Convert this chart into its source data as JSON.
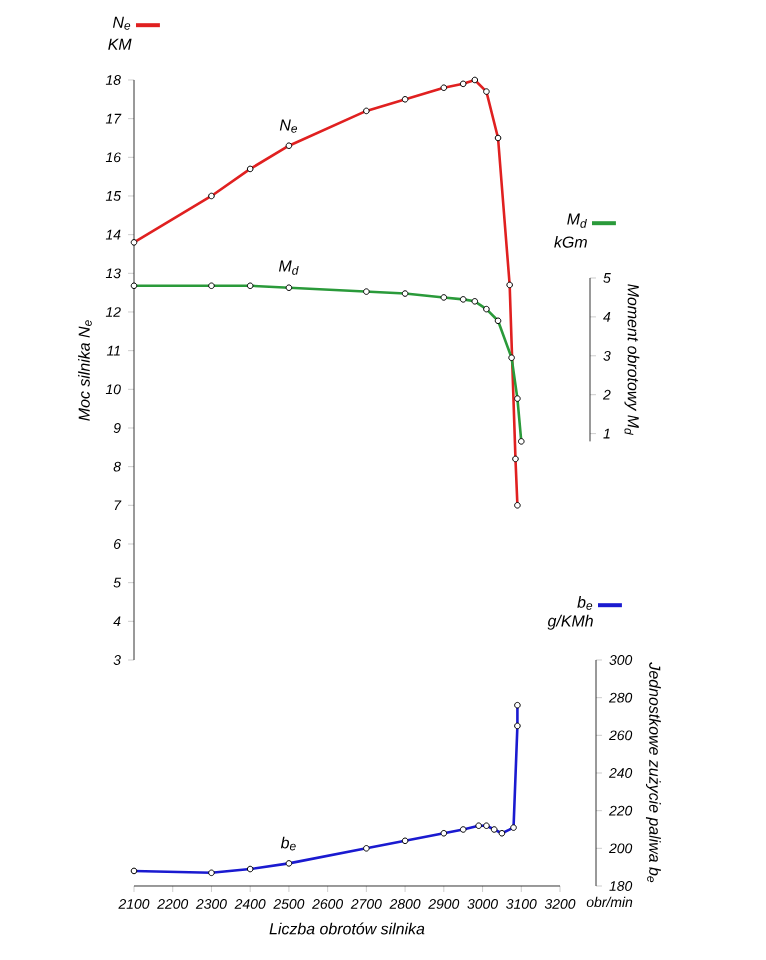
{
  "chart_data": [
    {
      "type": "line",
      "ylabel": "Moc silnika N$_{e}$",
      "xlim": [
        2100,
        3200
      ],
      "ylim": [
        3,
        18
      ],
      "yticks": [
        3,
        4,
        5,
        6,
        7,
        8,
        9,
        10,
        11,
        12,
        13,
        14,
        15,
        16,
        17,
        18
      ],
      "tick_labels": "y",
      "marker": "circle",
      "line_style": "solid",
      "annotations": [
        "KM"
      ],
      "series": [
        {
          "name": "N$_{e}$",
          "color": "#e02020",
          "x": [
            2100,
            2300,
            2400,
            2500,
            2700,
            2800,
            2900,
            2950,
            2980,
            3010,
            3040,
            3070,
            3085,
            3090
          ],
          "values": [
            13.8,
            15.0,
            15.7,
            16.3,
            17.2,
            17.5,
            17.8,
            17.9,
            18.0,
            17.7,
            16.5,
            12.7,
            8.2,
            7.0
          ]
        }
      ]
    },
    {
      "type": "line",
      "ylabel": "Moment obrotowy M$_{d}$",
      "xlim": [
        2100,
        3200
      ],
      "ylim": [
        0.8,
        5
      ],
      "yticks": [
        1,
        2,
        3,
        4,
        5
      ],
      "tick_labels": "y",
      "marker": "circle",
      "line_style": "solid",
      "annotations": [
        "kGm"
      ],
      "series": [
        {
          "name": "M$_{d}$",
          "color": "#2a9a3a",
          "x": [
            2100,
            2300,
            2400,
            2500,
            2700,
            2800,
            2900,
            2950,
            2980,
            3010,
            3040,
            3075,
            3090,
            3100
          ],
          "values": [
            4.8,
            4.8,
            4.8,
            4.75,
            4.65,
            4.6,
            4.5,
            4.45,
            4.4,
            4.2,
            3.9,
            2.95,
            1.9,
            0.8
          ]
        }
      ]
    },
    {
      "type": "line",
      "xlabel": "Liczba obrotów silnika",
      "ylabel": "Jednostkowe zużycie paliwa b$_{e}$",
      "xlim": [
        2100,
        3200
      ],
      "xticks": [
        2100,
        2200,
        2300,
        2400,
        2500,
        2600,
        2700,
        2800,
        2900,
        3000,
        3100,
        3200
      ],
      "ylim": [
        180,
        300
      ],
      "yticks": [
        180,
        200,
        220,
        240,
        260,
        280,
        300
      ],
      "marker": "circle",
      "line_style": "solid",
      "annotations": [
        "g/KMh",
        "obr/min"
      ],
      "series": [
        {
          "name": "b$_{e}$",
          "color": "#1a1ad0",
          "x": [
            2100,
            2300,
            2400,
            2500,
            2700,
            2800,
            2900,
            2950,
            2990,
            3010,
            3030,
            3050,
            3080,
            3090,
            3090
          ],
          "values": [
            188,
            187,
            189,
            192,
            200,
            204,
            208,
            210,
            212,
            212,
            210,
            208,
            211,
            265,
            276
          ]
        }
      ]
    }
  ]
}
